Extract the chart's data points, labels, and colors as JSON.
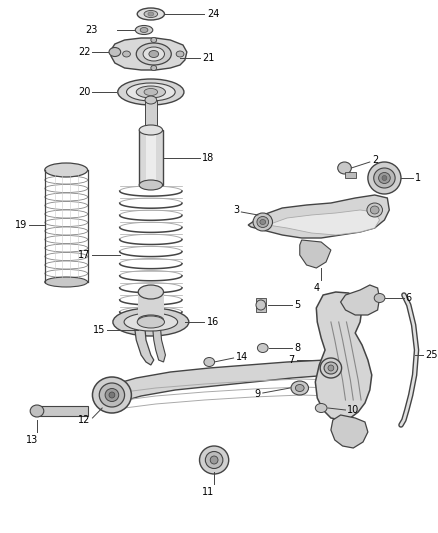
{
  "background_color": "#ffffff",
  "fig_width": 4.38,
  "fig_height": 5.33,
  "dpi": 100,
  "line_color": "#444444",
  "text_color": "#000000",
  "text_fontsize": 7.0,
  "fill_light": "#e8e8e8",
  "fill_mid": "#d0d0d0",
  "fill_dark": "#b0b0b0"
}
